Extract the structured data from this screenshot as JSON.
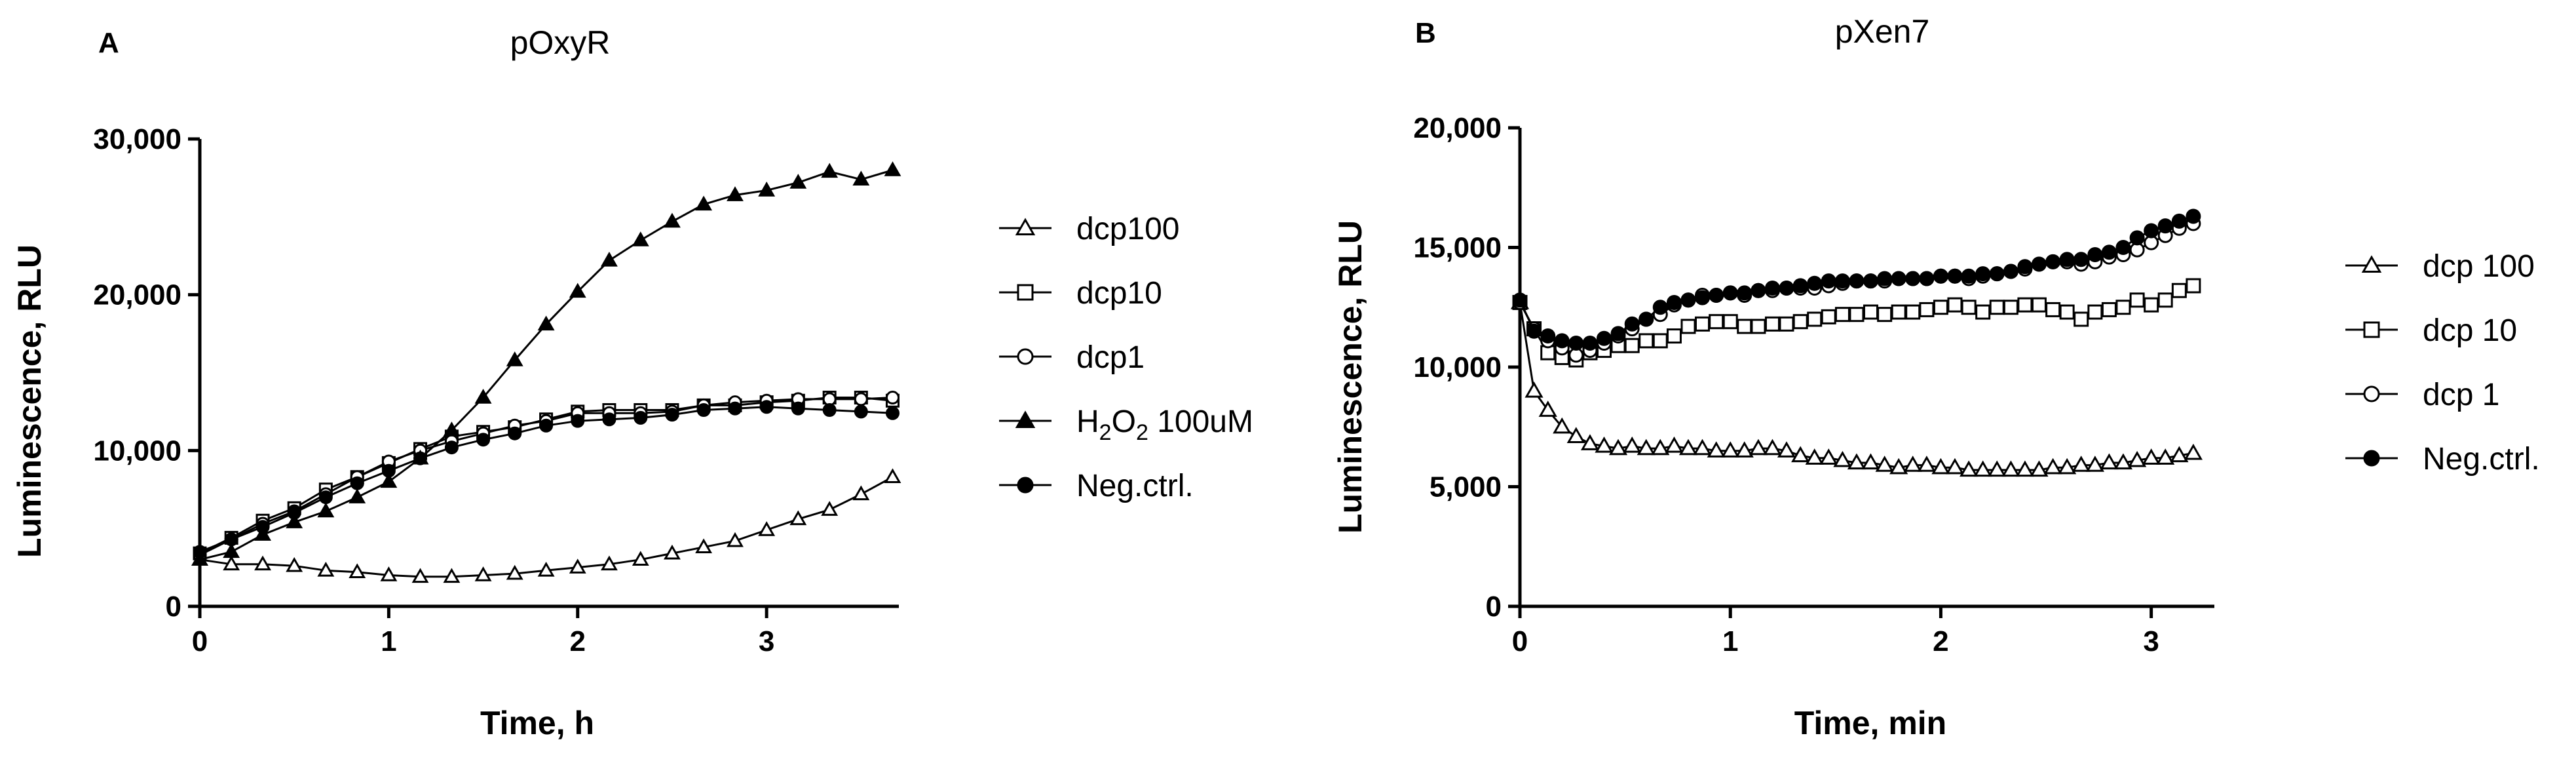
{
  "chart_data": [
    {
      "panel": "A",
      "type": "line",
      "title": "pOxyR",
      "xlabel": "Time, h",
      "ylabel": "Luminescence, RLU",
      "xlim": [
        0,
        3.7
      ],
      "ylim": [
        0,
        30000
      ],
      "xticks": [
        0,
        1,
        2,
        3
      ],
      "xtick_labels": [
        "0",
        "1",
        "2",
        "3"
      ],
      "yticks": [
        0,
        10000,
        20000,
        30000
      ],
      "ytick_labels": [
        "0",
        "10,000",
        "20,000",
        "30,000"
      ],
      "legend_position": "right",
      "x": [
        0,
        0.167,
        0.333,
        0.5,
        0.667,
        0.833,
        1.0,
        1.167,
        1.333,
        1.5,
        1.667,
        1.833,
        2.0,
        2.167,
        2.333,
        2.5,
        2.667,
        2.833,
        3.0,
        3.167,
        3.333,
        3.5,
        3.667
      ],
      "series": [
        {
          "name": "dcp100",
          "marker": "triangle-open",
          "values": [
            3000,
            2700,
            2700,
            2600,
            2300,
            2200,
            2000,
            1900,
            1900,
            2000,
            2100,
            2300,
            2500,
            2700,
            3000,
            3400,
            3800,
            4200,
            4900,
            5600,
            6200,
            7200,
            8300
          ]
        },
        {
          "name": "dcp10",
          "marker": "square-open",
          "values": [
            3400,
            4400,
            5500,
            6300,
            7500,
            8300,
            9200,
            10100,
            10900,
            11200,
            11500,
            12000,
            12500,
            12600,
            12600,
            12600,
            12900,
            12900,
            13100,
            13200,
            13400,
            13400,
            13200
          ]
        },
        {
          "name": "dcp1",
          "marker": "circle-open",
          "values": [
            3300,
            4300,
            5300,
            6100,
            7200,
            8300,
            9300,
            10000,
            10600,
            11100,
            11600,
            11900,
            12400,
            12400,
            12400,
            12500,
            12900,
            13100,
            13200,
            13300,
            13300,
            13300,
            13400
          ]
        },
        {
          "name": "H₂O₂ 100uM",
          "name_main": "H",
          "name_sub": "2",
          "name_mid": "O",
          "name_sub2": "2",
          "name_tail": " 100uM",
          "marker": "triangle-filled",
          "values": [
            3000,
            3500,
            4600,
            5400,
            6100,
            7000,
            8000,
            9500,
            11300,
            13400,
            15800,
            18100,
            20200,
            22200,
            23500,
            24700,
            25800,
            26400,
            26700,
            27200,
            27900,
            27400,
            28000
          ]
        },
        {
          "name": "Neg.ctrl.",
          "marker": "circle-filled",
          "values": [
            3500,
            4300,
            5100,
            6000,
            7000,
            7900,
            8700,
            9500,
            10200,
            10700,
            11100,
            11600,
            11900,
            12000,
            12100,
            12300,
            12600,
            12700,
            12800,
            12700,
            12600,
            12500,
            12400
          ]
        }
      ]
    },
    {
      "panel": "B",
      "type": "line",
      "title": "pXen7",
      "xlabel": "Time, min",
      "ylabel": "Luminescence, RLU",
      "xlim": [
        0,
        3.3
      ],
      "ylim": [
        0,
        20000
      ],
      "xticks": [
        0,
        1,
        2,
        3
      ],
      "xtick_labels": [
        "0",
        "1",
        "2",
        "3"
      ],
      "yticks": [
        0,
        5000,
        10000,
        15000,
        20000
      ],
      "ytick_labels": [
        "0",
        "5,000",
        "10,000",
        "15,000",
        "20,000"
      ],
      "legend_position": "right",
      "x": [
        0,
        0.067,
        0.133,
        0.2,
        0.267,
        0.333,
        0.4,
        0.467,
        0.533,
        0.6,
        0.667,
        0.733,
        0.8,
        0.867,
        0.933,
        1.0,
        1.067,
        1.133,
        1.2,
        1.267,
        1.333,
        1.4,
        1.467,
        1.533,
        1.6,
        1.667,
        1.733,
        1.8,
        1.867,
        1.933,
        2.0,
        2.067,
        2.133,
        2.2,
        2.267,
        2.333,
        2.4,
        2.467,
        2.533,
        2.6,
        2.667,
        2.733,
        2.8,
        2.867,
        2.933,
        3.0,
        3.067,
        3.133,
        3.2
      ],
      "series": [
        {
          "name": "dcp 100",
          "marker": "triangle-open",
          "values": [
            12700,
            9000,
            8200,
            7500,
            7100,
            6800,
            6700,
            6600,
            6700,
            6600,
            6600,
            6700,
            6600,
            6600,
            6500,
            6500,
            6500,
            6600,
            6600,
            6500,
            6300,
            6200,
            6200,
            6100,
            6000,
            6000,
            5900,
            5800,
            5900,
            5900,
            5800,
            5800,
            5700,
            5700,
            5700,
            5700,
            5700,
            5700,
            5800,
            5800,
            5900,
            5900,
            6000,
            6000,
            6100,
            6200,
            6200,
            6300,
            6400
          ]
        },
        {
          "name": "dcp 10",
          "marker": "square-open",
          "values": [
            12700,
            11600,
            10600,
            10400,
            10300,
            10600,
            10700,
            10900,
            10900,
            11100,
            11100,
            11300,
            11700,
            11800,
            11900,
            11900,
            11700,
            11700,
            11800,
            11800,
            11900,
            12000,
            12100,
            12200,
            12200,
            12300,
            12200,
            12300,
            12300,
            12400,
            12500,
            12600,
            12500,
            12300,
            12500,
            12500,
            12600,
            12600,
            12400,
            12300,
            12000,
            12300,
            12400,
            12500,
            12800,
            12600,
            12800,
            13200,
            13400
          ]
        },
        {
          "name": "dcp 1",
          "marker": "circle-open",
          "values": [
            12700,
            11600,
            11100,
            10800,
            10500,
            10700,
            11000,
            11300,
            11600,
            12000,
            12200,
            12600,
            12800,
            13000,
            13000,
            13100,
            13000,
            13200,
            13200,
            13300,
            13300,
            13300,
            13400,
            13500,
            13600,
            13600,
            13600,
            13700,
            13700,
            13700,
            13800,
            13800,
            13700,
            13800,
            13900,
            14000,
            14100,
            14300,
            14400,
            14400,
            14300,
            14400,
            14600,
            14700,
            14900,
            15200,
            15500,
            15800,
            16000
          ]
        },
        {
          "name": "Neg.ctrl.",
          "marker": "circle-filled",
          "values": [
            12800,
            11500,
            11300,
            11100,
            11000,
            11000,
            11200,
            11400,
            11800,
            12000,
            12500,
            12700,
            12800,
            12900,
            13000,
            13100,
            13100,
            13200,
            13300,
            13300,
            13400,
            13500,
            13600,
            13600,
            13600,
            13600,
            13700,
            13700,
            13700,
            13700,
            13800,
            13800,
            13800,
            13900,
            13900,
            14000,
            14200,
            14300,
            14400,
            14500,
            14500,
            14700,
            14800,
            15000,
            15400,
            15700,
            15900,
            16100,
            16300
          ]
        }
      ]
    }
  ]
}
